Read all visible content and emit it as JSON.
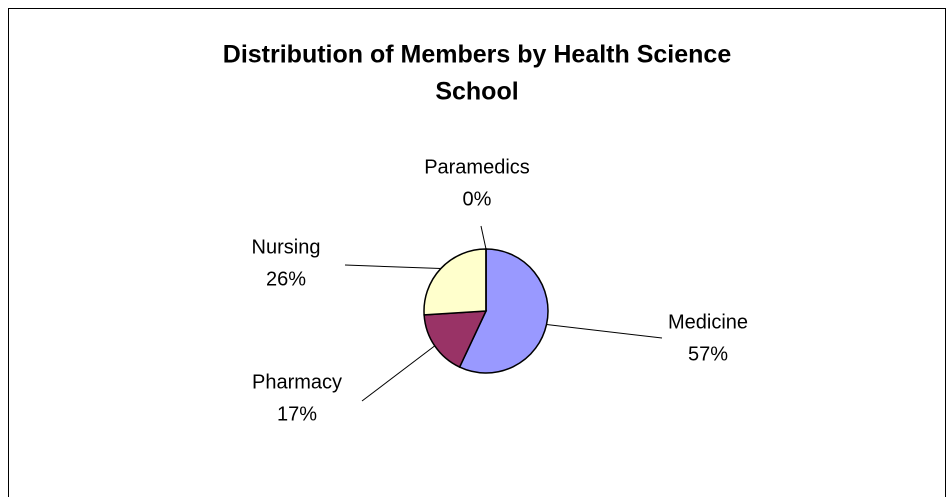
{
  "chart_data": {
    "type": "pie",
    "title": [
      "Distribution of Members by Health Science",
      "School"
    ],
    "categories": [
      "Medicine",
      "Pharmacy",
      "Nursing",
      "Paramedics"
    ],
    "values": [
      57,
      17,
      26,
      0
    ],
    "value_labels": [
      "57%",
      "17%",
      "26%",
      "0%"
    ],
    "colors": [
      "#9999ff",
      "#993366",
      "#ffffcc",
      "#ccffff"
    ]
  }
}
